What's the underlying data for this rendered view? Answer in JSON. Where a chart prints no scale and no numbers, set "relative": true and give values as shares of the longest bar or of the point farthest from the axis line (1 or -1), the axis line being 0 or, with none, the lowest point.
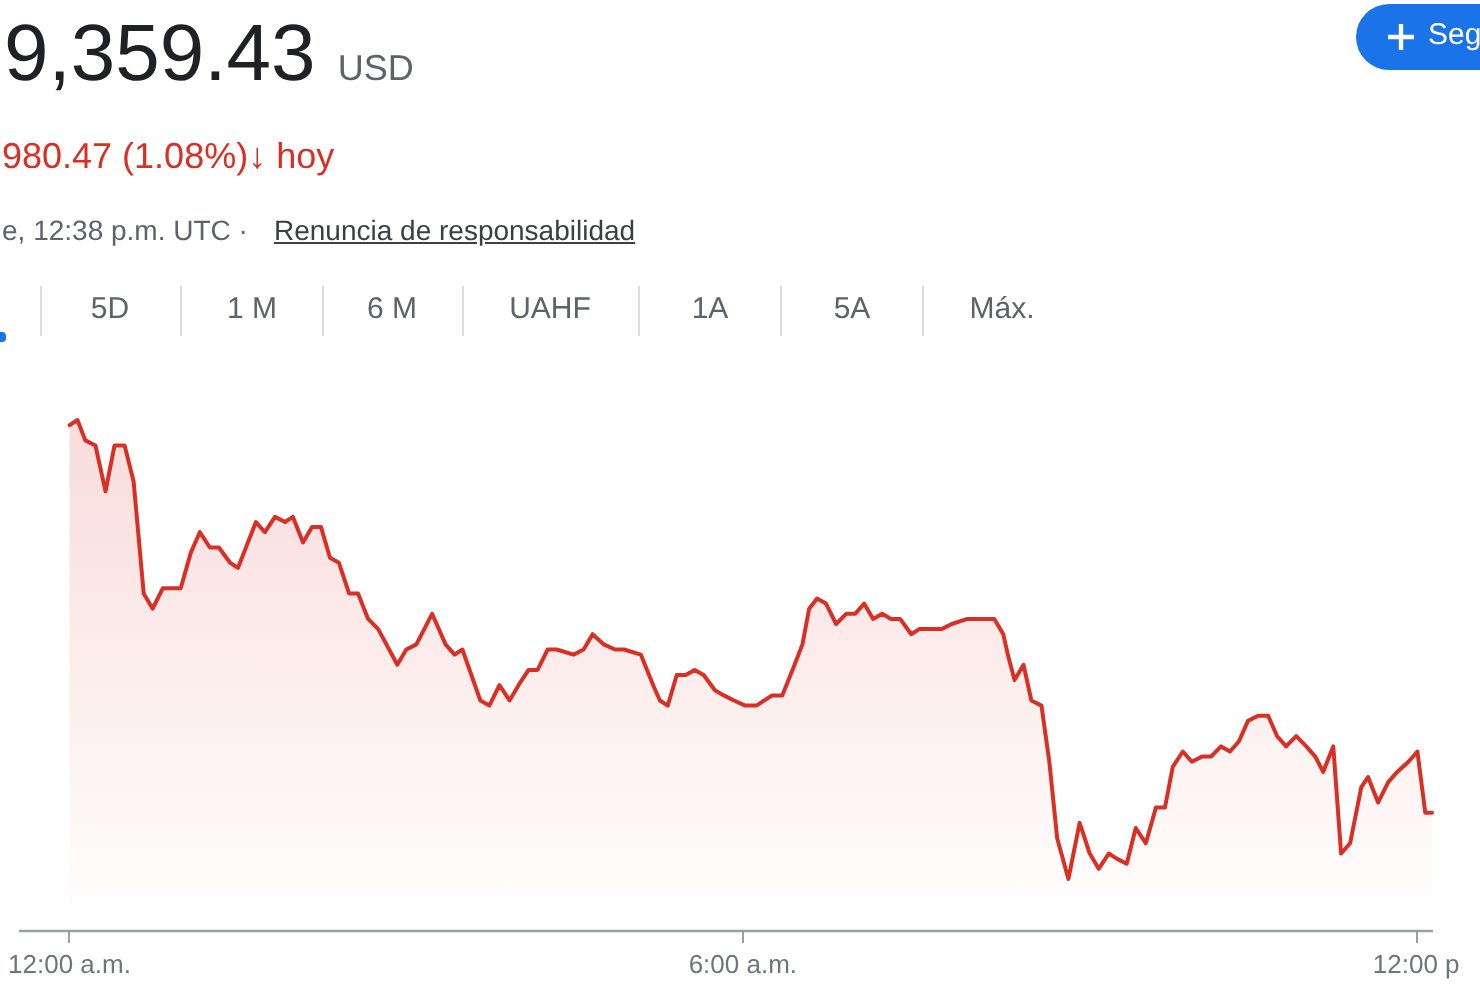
{
  "chart_data": {
    "type": "area",
    "title": "9,359.43 USD",
    "subtitle": "980.47 (1.08%)↓ hoy",
    "annotations": [
      "e, 12:38 p.m. UTC ·",
      "Renuncia de responsabilidad",
      "Seg",
      "5D",
      "1 M",
      "6 M",
      "UAHF",
      "1A",
      "5A",
      "Máx."
    ],
    "relative": true,
    "color": "#d93025",
    "x": [
      0.01,
      0.08,
      0.15,
      0.24,
      0.33,
      0.41,
      0.5,
      0.58,
      0.67,
      0.75,
      0.84,
      1.0,
      1.09,
      1.17,
      1.26,
      1.34,
      1.44,
      1.51,
      1.67,
      1.75,
      1.84,
      1.93,
      2.0,
      2.09,
      2.17,
      2.25,
      2.33,
      2.41,
      2.5,
      2.58,
      2.67,
      2.76,
      2.93,
      3.01,
      3.1,
      3.24,
      3.36,
      3.44,
      3.51,
      3.67,
      3.75,
      3.84,
      3.93,
      4.01,
      4.1,
      4.18,
      4.27,
      4.35,
      4.5,
      4.59,
      4.67,
      4.77,
      4.87,
      4.95,
      5.1,
      5.21,
      5.27,
      5.34,
      5.42,
      5.5,
      5.58,
      5.66,
      5.76,
      5.84,
      5.93,
      6.03,
      6.13,
      6.27,
      6.36,
      6.47,
      6.54,
      6.6,
      6.67,
      6.75,
      6.84,
      6.93,
      7.01,
      7.09,
      7.17,
      7.25,
      7.33,
      7.41,
      7.51,
      7.58,
      7.7,
      7.78,
      7.87,
      8.01,
      8.1,
      8.25,
      8.33,
      8.37,
      8.43,
      8.51,
      8.58,
      8.67,
      8.74,
      8.81,
      8.91,
      9.01,
      9.1,
      9.18,
      9.27,
      9.34,
      9.43,
      9.51,
      9.6,
      9.69,
      9.77,
      9.84,
      9.93,
      10.01,
      10.1,
      10.18,
      10.27,
      10.35,
      10.43,
      10.51,
      10.6,
      10.69,
      10.77,
      10.85,
      10.94,
      11.03,
      11.11,
      11.18,
      11.27,
      11.34,
      11.42,
      11.52,
      11.58,
      11.67,
      11.76,
      11.84,
      11.94,
      12.02,
      12.09,
      12.15
    ],
    "values": [
      0.99,
      1.0,
      0.96,
      0.95,
      0.86,
      0.95,
      0.95,
      0.88,
      0.66,
      0.63,
      0.67,
      0.67,
      0.74,
      0.78,
      0.75,
      0.75,
      0.72,
      0.71,
      0.8,
      0.78,
      0.81,
      0.8,
      0.81,
      0.76,
      0.79,
      0.79,
      0.73,
      0.72,
      0.66,
      0.66,
      0.61,
      0.59,
      0.52,
      0.55,
      0.56,
      0.62,
      0.56,
      0.54,
      0.55,
      0.45,
      0.44,
      0.48,
      0.45,
      0.48,
      0.51,
      0.51,
      0.55,
      0.55,
      0.54,
      0.55,
      0.58,
      0.56,
      0.55,
      0.55,
      0.54,
      0.48,
      0.45,
      0.44,
      0.5,
      0.5,
      0.51,
      0.5,
      0.47,
      0.46,
      0.45,
      0.44,
      0.44,
      0.46,
      0.46,
      0.52,
      0.56,
      0.63,
      0.65,
      0.64,
      0.6,
      0.62,
      0.62,
      0.64,
      0.61,
      0.62,
      0.61,
      0.61,
      0.58,
      0.59,
      0.59,
      0.59,
      0.6,
      0.61,
      0.61,
      0.61,
      0.58,
      0.54,
      0.49,
      0.52,
      0.45,
      0.44,
      0.33,
      0.18,
      0.1,
      0.21,
      0.15,
      0.12,
      0.15,
      0.14,
      0.13,
      0.2,
      0.17,
      0.24,
      0.24,
      0.32,
      0.35,
      0.33,
      0.34,
      0.34,
      0.36,
      0.35,
      0.37,
      0.41,
      0.42,
      0.42,
      0.38,
      0.36,
      0.38,
      0.36,
      0.34,
      0.31,
      0.36,
      0.15,
      0.17,
      0.28,
      0.3,
      0.25,
      0.29,
      0.31,
      0.33,
      0.35,
      0.23,
      0.23
    ],
    "xlim": [
      -0.45,
      12.15
    ],
    "xticks": [
      {
        "value": 0,
        "label": "12:00 a.m."
      },
      {
        "value": 6,
        "label": "6:00 a.m."
      },
      {
        "value": 12,
        "label": "12:00 p"
      }
    ]
  }
}
